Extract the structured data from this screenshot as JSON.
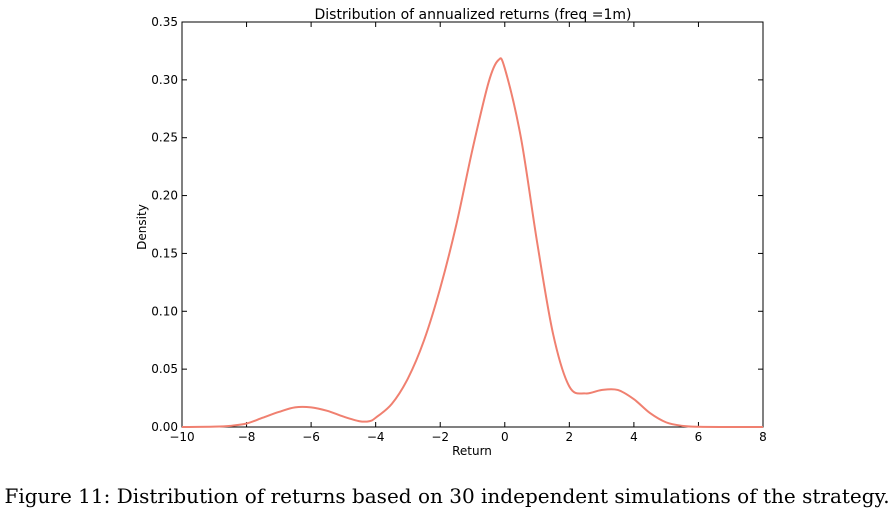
{
  "caption": "Figure 11: Distribution of returns based on 30 independent simulations of the strategy.",
  "chart_data": {
    "type": "line",
    "title": "Distribution of annualized returns (freq =1m)",
    "xlabel": "Return",
    "ylabel": "Density",
    "xlim": [
      -10,
      8
    ],
    "ylim": [
      0,
      0.35
    ],
    "xticks": [
      -10,
      -8,
      -6,
      -4,
      -2,
      0,
      2,
      4,
      6,
      8
    ],
    "xtick_labels": [
      "−10",
      "−8",
      "−6",
      "−4",
      "−2",
      "0",
      "2",
      "4",
      "6",
      "8"
    ],
    "yticks": [
      0,
      0.05,
      0.1,
      0.15,
      0.2,
      0.25,
      0.3,
      0.35
    ],
    "ytick_labels": [
      "0.00",
      "0.05",
      "0.10",
      "0.15",
      "0.20",
      "0.25",
      "0.30",
      "0.35"
    ],
    "grid": false,
    "line_color": "#f08070",
    "series": [
      {
        "x": [
          -10,
          -9,
          -8.5,
          -8,
          -7.5,
          -7,
          -6.5,
          -6,
          -5.5,
          -5,
          -4.5,
          -4.2,
          -4,
          -3.5,
          -3,
          -2.5,
          -2,
          -1.5,
          -1,
          -0.5,
          -0.2,
          0,
          0.5,
          1,
          1.5,
          2,
          2.5,
          3,
          3.5,
          4,
          4.5,
          5,
          5.5,
          6,
          7,
          8
        ],
        "y": [
          0,
          0.0003,
          0.001,
          0.003,
          0.008,
          0.013,
          0.017,
          0.017,
          0.014,
          0.009,
          0.005,
          0.005,
          0.008,
          0.02,
          0.042,
          0.075,
          0.12,
          0.175,
          0.24,
          0.298,
          0.317,
          0.31,
          0.25,
          0.16,
          0.08,
          0.035,
          0.029,
          0.032,
          0.032,
          0.024,
          0.012,
          0.004,
          0.001,
          0.0002,
          0,
          0
        ]
      }
    ]
  }
}
